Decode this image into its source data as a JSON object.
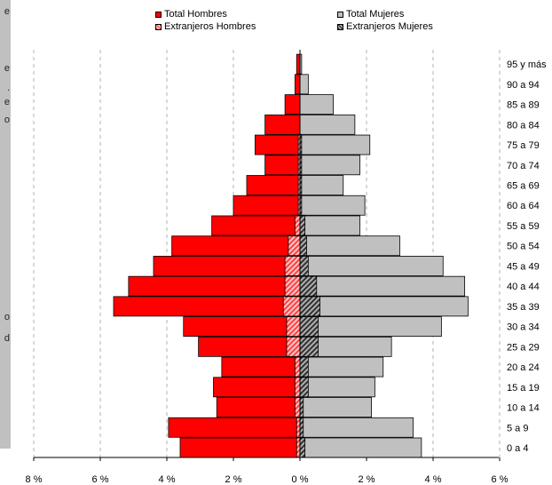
{
  "sidebar_fragments": [
    "e",
    "e",
    ".",
    "e",
    "o",
    "o",
    "d"
  ],
  "colors": {
    "total_hombres": "#ff0000",
    "total_mujeres": "#c0c0c0",
    "extranjeros_hombres": "#ff6060",
    "extranjeros_mujeres": "#808080",
    "gridline": "#b0b0b0",
    "sidebar": "#c0c0c0"
  },
  "chart_data": {
    "type": "bar",
    "orientation": "horizontal-population-pyramid",
    "categories": [
      "0 a 4",
      "5 a 9",
      "10 a 14",
      "15 a 19",
      "20 a 24",
      "25 a 29",
      "30 a 34",
      "35 a 39",
      "40 a 44",
      "45 a 49",
      "50 a 54",
      "55 a 59",
      "60 a 64",
      "65 a 69",
      "70 a 74",
      "75 a 79",
      "80 a 84",
      "85 a 89",
      "90 a 94",
      "95 y más"
    ],
    "series": [
      {
        "name": "Total Hombres",
        "side": "left",
        "values": [
          3.6,
          3.95,
          2.5,
          2.6,
          2.35,
          3.05,
          3.5,
          5.6,
          5.15,
          4.4,
          3.85,
          2.65,
          2.0,
          1.6,
          1.05,
          1.35,
          1.05,
          0.45,
          0.15,
          0.1
        ]
      },
      {
        "name": "Total Mujeres",
        "side": "right",
        "values": [
          3.65,
          3.4,
          2.15,
          2.25,
          2.5,
          2.75,
          4.25,
          5.05,
          4.95,
          4.3,
          3.0,
          1.8,
          1.95,
          1.3,
          1.8,
          2.1,
          1.65,
          1.0,
          0.25,
          0.05
        ]
      },
      {
        "name": "Extranjeros Hombres",
        "side": "left",
        "values": [
          0.1,
          0.1,
          0.15,
          0.15,
          0.15,
          0.4,
          0.4,
          0.5,
          0.45,
          0.45,
          0.35,
          0.15,
          0.05,
          0.05,
          0.05,
          0.05,
          0.0,
          0.0,
          0.0,
          0.0
        ]
      },
      {
        "name": "Extranjeros Mujeres",
        "side": "right",
        "values": [
          0.15,
          0.1,
          0.1,
          0.25,
          0.25,
          0.55,
          0.55,
          0.6,
          0.5,
          0.25,
          0.2,
          0.15,
          0.05,
          0.05,
          0.05,
          0.05,
          0.0,
          0.0,
          0.0,
          0.0
        ]
      }
    ],
    "xticks": [
      "8 %",
      "6 %",
      "4 %",
      "2 %",
      "0 %",
      "2 %",
      "4 %",
      "6 %"
    ],
    "xlim": [
      -8,
      6
    ],
    "legend": [
      {
        "label": "Total Hombres",
        "series": "Total Hombres"
      },
      {
        "label": "Total Mujeres",
        "series": "Total Mujeres"
      },
      {
        "label": "Extranjeros Hombres",
        "series": "Extranjeros Hombres"
      },
      {
        "label": "Extranjeros Mujeres",
        "series": "Extranjeros Mujeres"
      }
    ],
    "legend_position": "top",
    "grid": "vertical dashed"
  }
}
